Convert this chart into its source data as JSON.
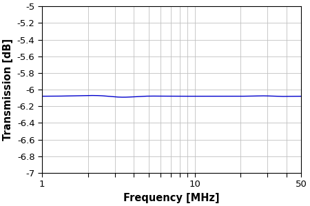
{
  "xmin": 1,
  "xmax": 50,
  "ymin": -7,
  "ymax": -5,
  "yticks": [
    -7,
    -6.8,
    -6.6,
    -6.4,
    -6.2,
    -6,
    -5.8,
    -5.6,
    -5.4,
    -5.2,
    -5
  ],
  "ytick_labels": [
    "-7",
    "-6.8",
    "-6.6",
    "-6.4",
    "-6.2",
    "-6",
    "-5.8",
    "-5.6",
    "-5.4",
    "-5.2",
    "-5"
  ],
  "xtick_labels": [
    "1",
    "",
    "",
    "",
    "",
    "",
    "",
    "",
    "",
    "10",
    "",
    "",
    "",
    "50"
  ],
  "xtick_positions": [
    1,
    2,
    3,
    4,
    5,
    6,
    7,
    8,
    9,
    10,
    20,
    30,
    40,
    50
  ],
  "xlabel": "Frequency [MHz]",
  "ylabel": "Transmission [dB]",
  "line_color": "#0000CC",
  "line_width": 1.0,
  "base_value": -6.08,
  "background_color": "#ffffff",
  "grid_color": "#c0c0c0",
  "tick_label_fontsize": 9.5,
  "axis_label_fontsize": 10.5,
  "figure_width": 4.5,
  "figure_height": 2.99,
  "dpi": 100
}
